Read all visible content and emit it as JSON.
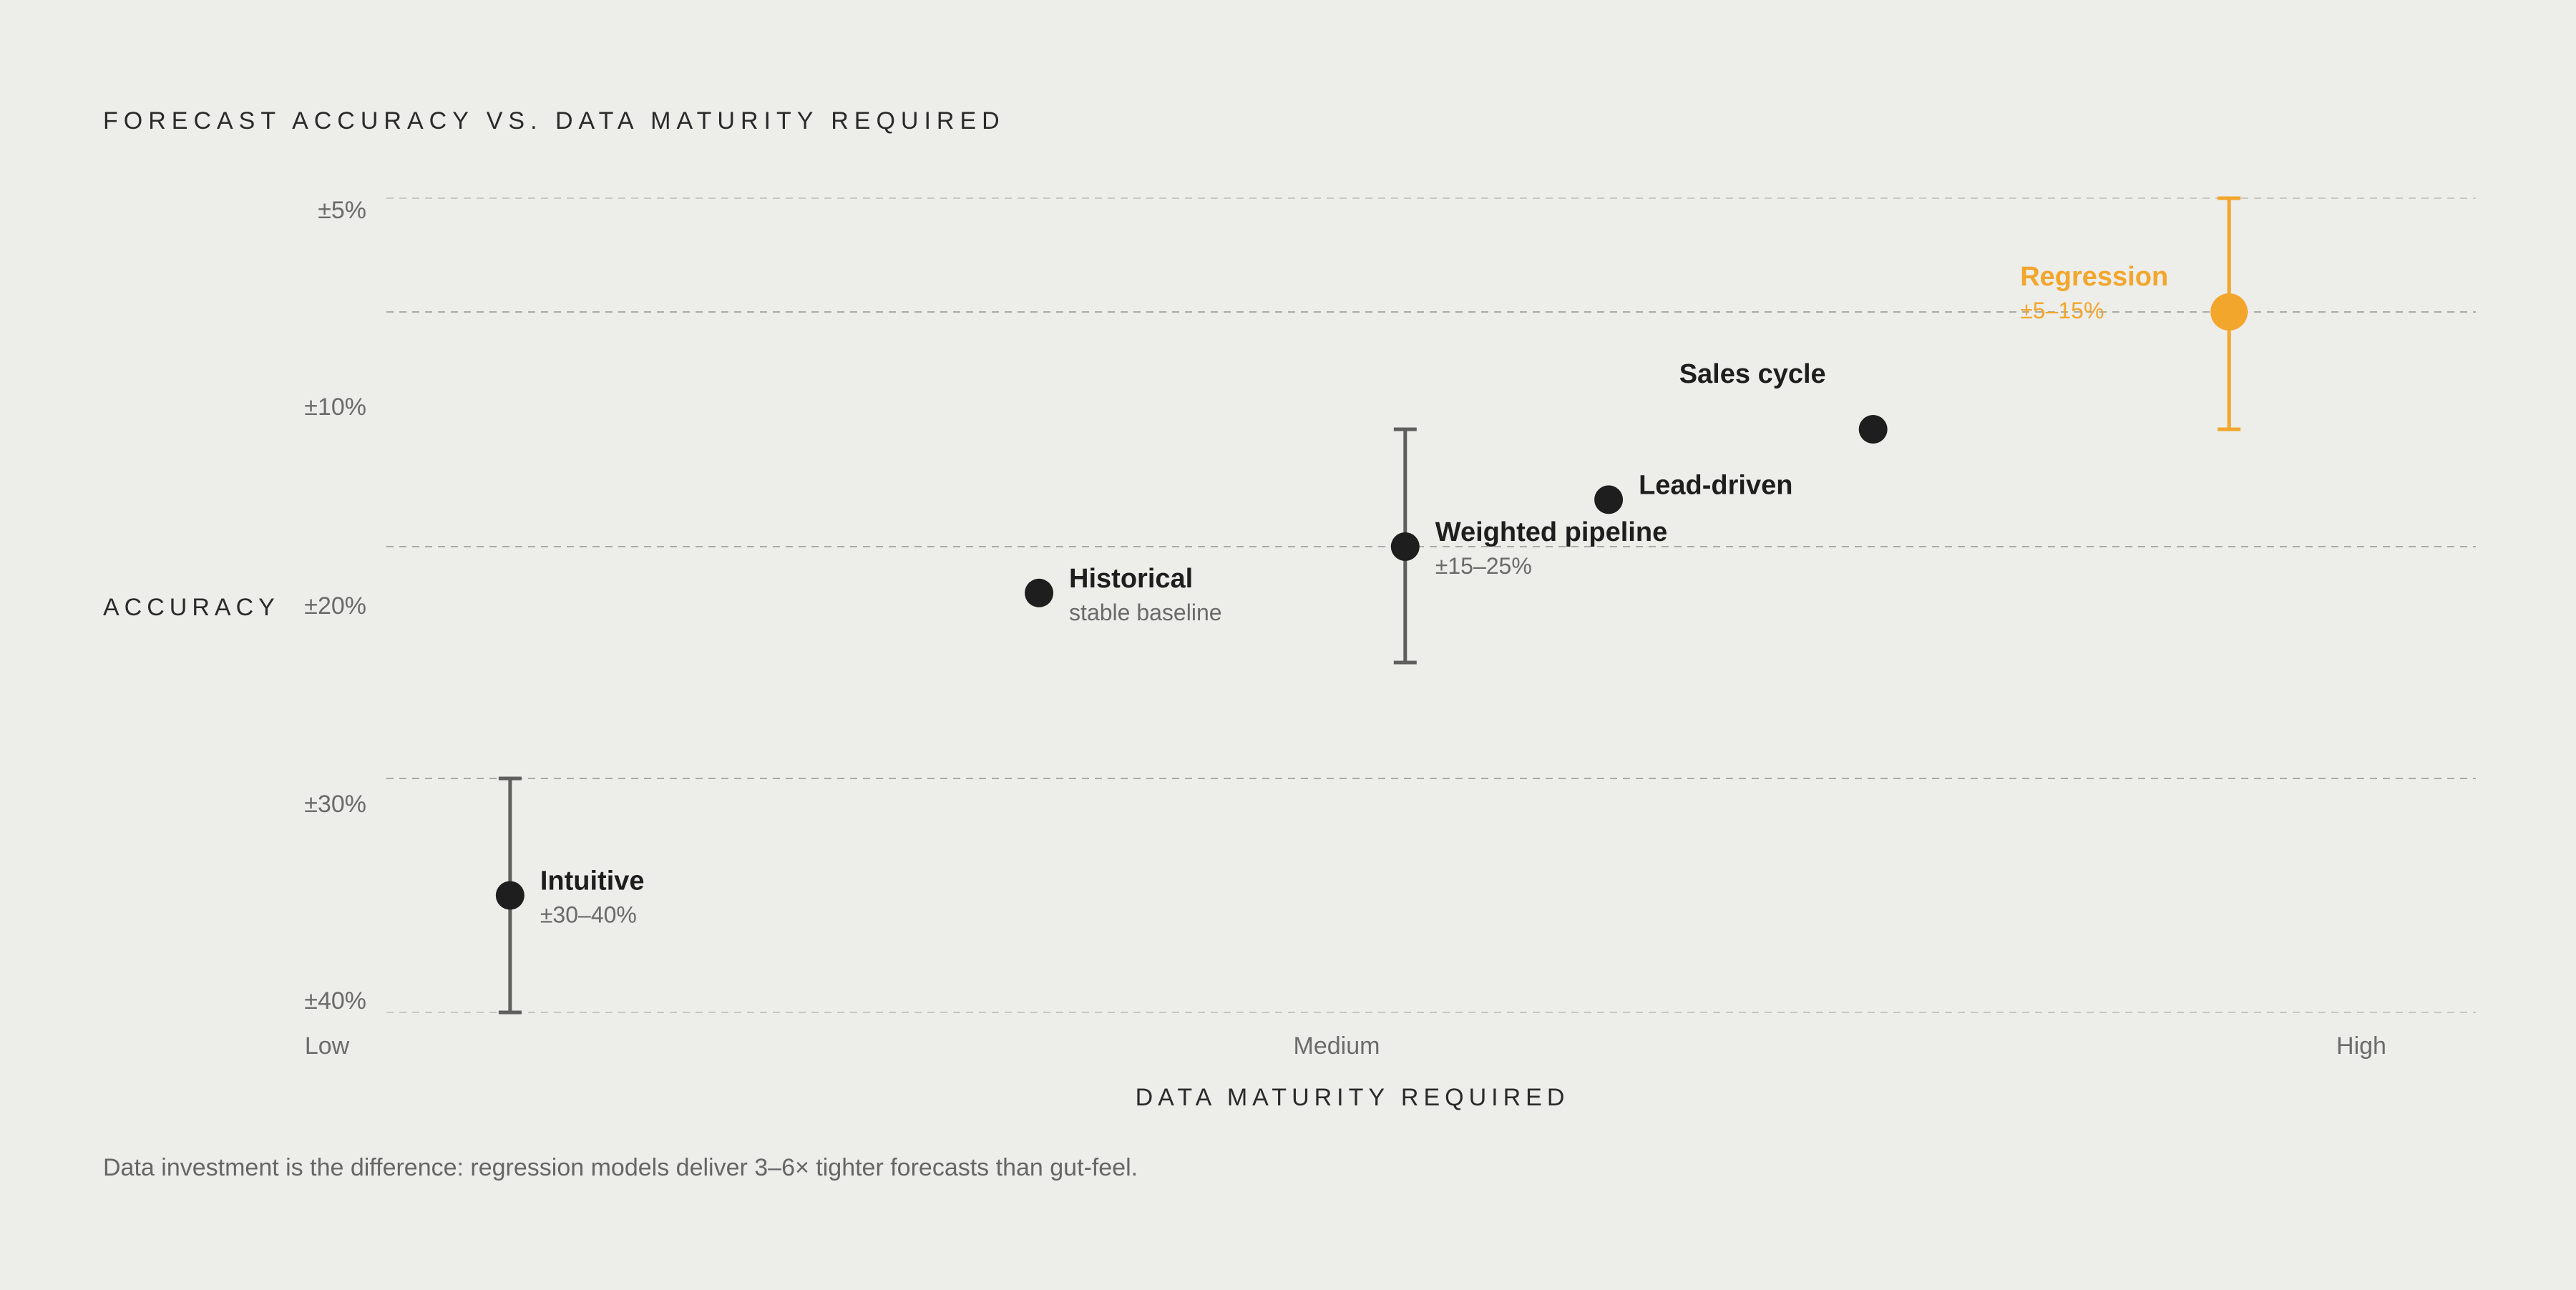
{
  "colors": {
    "background": "#ededea",
    "point": "#1e1e1e",
    "error_bar": "#5f5f5d",
    "highlight": "#f2a62b"
  },
  "chart_data": {
    "type": "scatter",
    "title": "FORECAST ACCURACY VS. DATA MATURITY REQUIRED",
    "xlabel": "DATA MATURITY REQUIRED",
    "ylabel": "ACCURACY",
    "x_ticks": [
      {
        "label": "Low",
        "value": 0
      },
      {
        "label": "Medium",
        "value": 0.5
      },
      {
        "label": "High",
        "value": 1
      }
    ],
    "y_ticks": [
      {
        "label": "±5%",
        "value": 5
      },
      {
        "label": "±10%",
        "value": 10
      },
      {
        "label": "±20%",
        "value": 20
      },
      {
        "label": "±30%",
        "value": 30
      },
      {
        "label": "±40%",
        "value": 40
      }
    ],
    "gridlines": [
      5,
      10,
      20,
      30,
      40
    ],
    "points": [
      {
        "name": "Intuitive",
        "sublabel": "±30–40%",
        "x": 0.09,
        "y": 35,
        "err": [
          30,
          40
        ],
        "highlight": false,
        "label_side": "right"
      },
      {
        "name": "Historical",
        "sublabel": "stable baseline",
        "x": 0.35,
        "y": 22,
        "err": null,
        "highlight": false,
        "label_side": "right"
      },
      {
        "name": "Weighted pipeline",
        "sublabel": "±15–25%",
        "x": 0.53,
        "y": 20,
        "err": [
          15,
          25
        ],
        "highlight": false,
        "label_side": "right"
      },
      {
        "name": "Lead-driven",
        "sublabel": "",
        "x": 0.63,
        "y": 18,
        "err": null,
        "highlight": false,
        "label_side": "right"
      },
      {
        "name": "Sales cycle",
        "sublabel": "",
        "x": 0.76,
        "y": 15,
        "err": null,
        "highlight": false,
        "label_side": "above-left"
      },
      {
        "name": "Regression",
        "sublabel": "±5–15%",
        "x": 0.935,
        "y": 10,
        "err": [
          5,
          15
        ],
        "highlight": true,
        "label_side": "left"
      }
    ],
    "caption": "Data investment is the difference: regression models deliver 3–6× tighter forecasts than gut-feel."
  }
}
